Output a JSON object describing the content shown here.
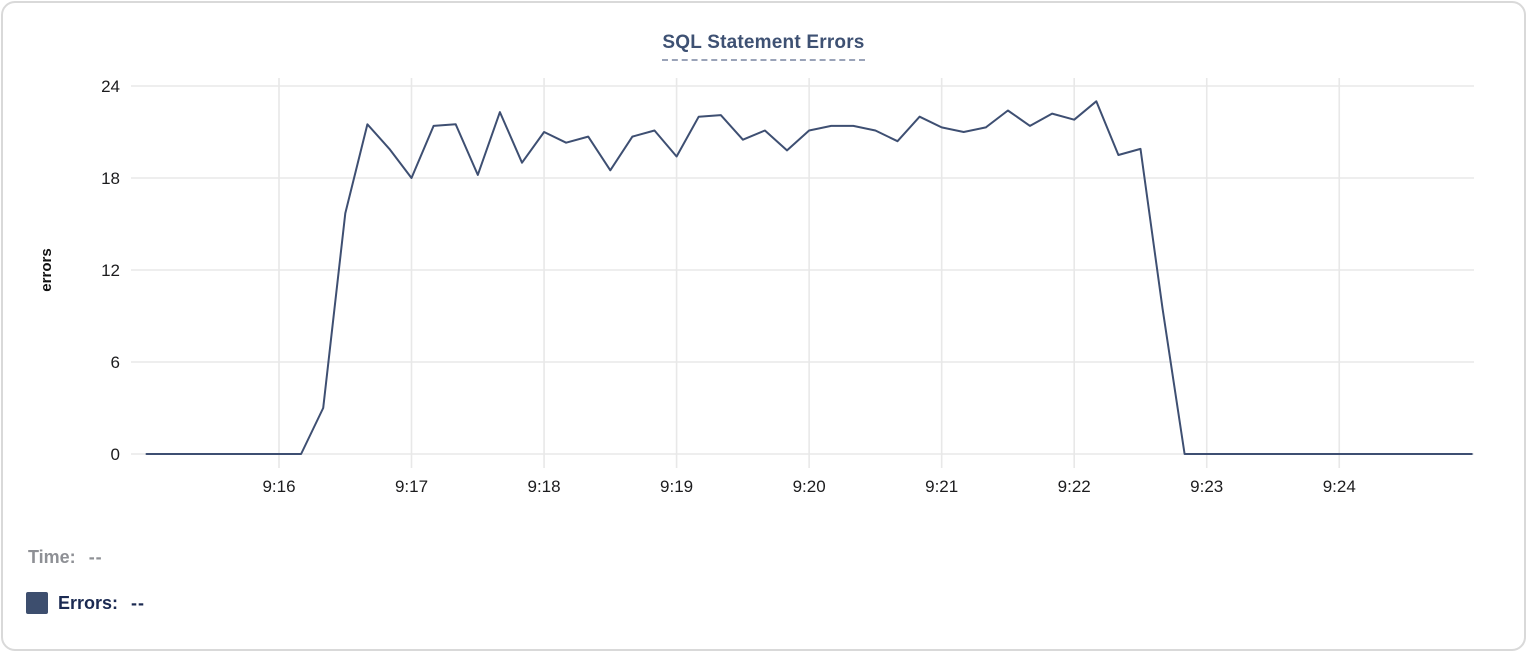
{
  "legend": {
    "time_label": "Time:",
    "time_value": "--",
    "errors_label": "Errors:",
    "errors_value": "--"
  },
  "colors": {
    "line": "#3e4f72",
    "swatch": "#3d4e6e",
    "title": "#3e5173",
    "grid": "#e8e8e8",
    "tick_text": "#1c1c1e",
    "time_label_gray": "#8e9095",
    "errors_label_navy": "#1b2a52",
    "card_border": "#d9d9d9"
  },
  "chart_data": {
    "type": "line",
    "title": "SQL Statement Errors",
    "xlabel": "",
    "ylabel": "errors",
    "series_name": "Errors",
    "x_unit": "time (H:MM:SS), points every 10s",
    "y_unit": "errors",
    "xlim": [
      "9:14:53",
      "9:25:01"
    ],
    "ylim": [
      0,
      24
    ],
    "yticks": [
      0,
      6,
      12,
      18,
      24
    ],
    "xticks": [
      "9:16",
      "9:17",
      "9:18",
      "9:19",
      "9:20",
      "9:21",
      "9:22",
      "9:23",
      "9:24"
    ],
    "grid": true,
    "legend_position": "bottom-left",
    "points": [
      [
        "9:15:00",
        0
      ],
      [
        "9:15:10",
        0
      ],
      [
        "9:15:20",
        0
      ],
      [
        "9:15:30",
        0
      ],
      [
        "9:15:40",
        0
      ],
      [
        "9:15:50",
        0
      ],
      [
        "9:16:00",
        0
      ],
      [
        "9:16:10",
        0
      ],
      [
        "9:16:20",
        3
      ],
      [
        "9:16:30",
        15.7
      ],
      [
        "9:16:40",
        21.5
      ],
      [
        "9:16:50",
        19.9
      ],
      [
        "9:17:00",
        18
      ],
      [
        "9:17:10",
        21.4
      ],
      [
        "9:17:20",
        21.5
      ],
      [
        "9:17:30",
        18.2
      ],
      [
        "9:17:40",
        22.3
      ],
      [
        "9:17:50",
        19
      ],
      [
        "9:18:00",
        21
      ],
      [
        "9:18:10",
        20.3
      ],
      [
        "9:18:20",
        20.7
      ],
      [
        "9:18:30",
        18.5
      ],
      [
        "9:18:40",
        20.7
      ],
      [
        "9:18:50",
        21.1
      ],
      [
        "9:19:00",
        19.4
      ],
      [
        "9:19:10",
        22
      ],
      [
        "9:19:20",
        22.1
      ],
      [
        "9:19:30",
        20.5
      ],
      [
        "9:19:40",
        21.1
      ],
      [
        "9:19:50",
        19.8
      ],
      [
        "9:20:00",
        21.1
      ],
      [
        "9:20:10",
        21.4
      ],
      [
        "9:20:20",
        21.4
      ],
      [
        "9:20:30",
        21.1
      ],
      [
        "9:20:40",
        20.4
      ],
      [
        "9:20:50",
        22
      ],
      [
        "9:21:00",
        21.3
      ],
      [
        "9:21:10",
        21
      ],
      [
        "9:21:20",
        21.3
      ],
      [
        "9:21:30",
        22.4
      ],
      [
        "9:21:40",
        21.4
      ],
      [
        "9:21:50",
        22.2
      ],
      [
        "9:22:00",
        21.8
      ],
      [
        "9:22:10",
        23
      ],
      [
        "9:22:20",
        19.5
      ],
      [
        "9:22:30",
        19.9
      ],
      [
        "9:22:40",
        9.5
      ],
      [
        "9:22:50",
        0
      ],
      [
        "9:23:00",
        0
      ],
      [
        "9:23:10",
        0
      ],
      [
        "9:23:20",
        0
      ],
      [
        "9:23:30",
        0
      ],
      [
        "9:23:40",
        0
      ],
      [
        "9:23:50",
        0
      ],
      [
        "9:24:00",
        0
      ],
      [
        "9:24:10",
        0
      ],
      [
        "9:24:20",
        0
      ],
      [
        "9:24:30",
        0
      ],
      [
        "9:24:40",
        0
      ],
      [
        "9:24:50",
        0
      ],
      [
        "9:25:00",
        0
      ]
    ]
  }
}
